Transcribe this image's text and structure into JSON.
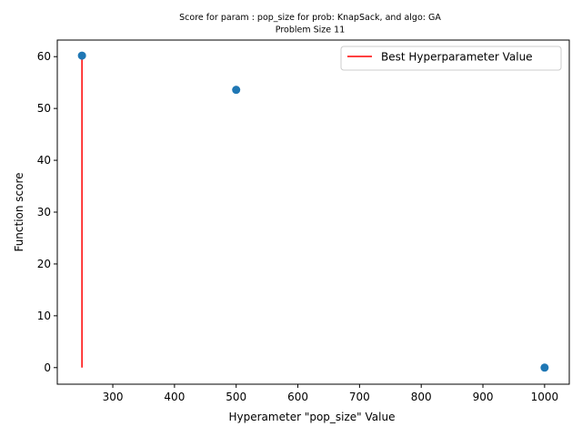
{
  "chart_data": {
    "type": "scatter",
    "title_line1": "Score for param : pop_size for prob: KnapSack, and algo: GA",
    "title_line2": "Problem Size 11",
    "xlabel": "Hyperameter \"pop_size\" Value",
    "ylabel": "Function score",
    "xlim": [
      210,
      1040
    ],
    "ylim": [
      -3.2,
      63.2
    ],
    "xticks": [
      300,
      400,
      500,
      600,
      700,
      800,
      900,
      1000
    ],
    "yticks": [
      0,
      10,
      20,
      30,
      40,
      50,
      60
    ],
    "points": [
      {
        "x": 250,
        "y": 60.2
      },
      {
        "x": 500,
        "y": 53.6
      },
      {
        "x": 1000,
        "y": 0
      }
    ],
    "point_color": "#1f77b4",
    "best_line": {
      "x": 250,
      "y_from": 0,
      "y_to": 60.2,
      "color": "#ff0000"
    },
    "legend": {
      "label": "Best Hyperparameter Value",
      "placement": "upper right"
    },
    "grid": false
  }
}
